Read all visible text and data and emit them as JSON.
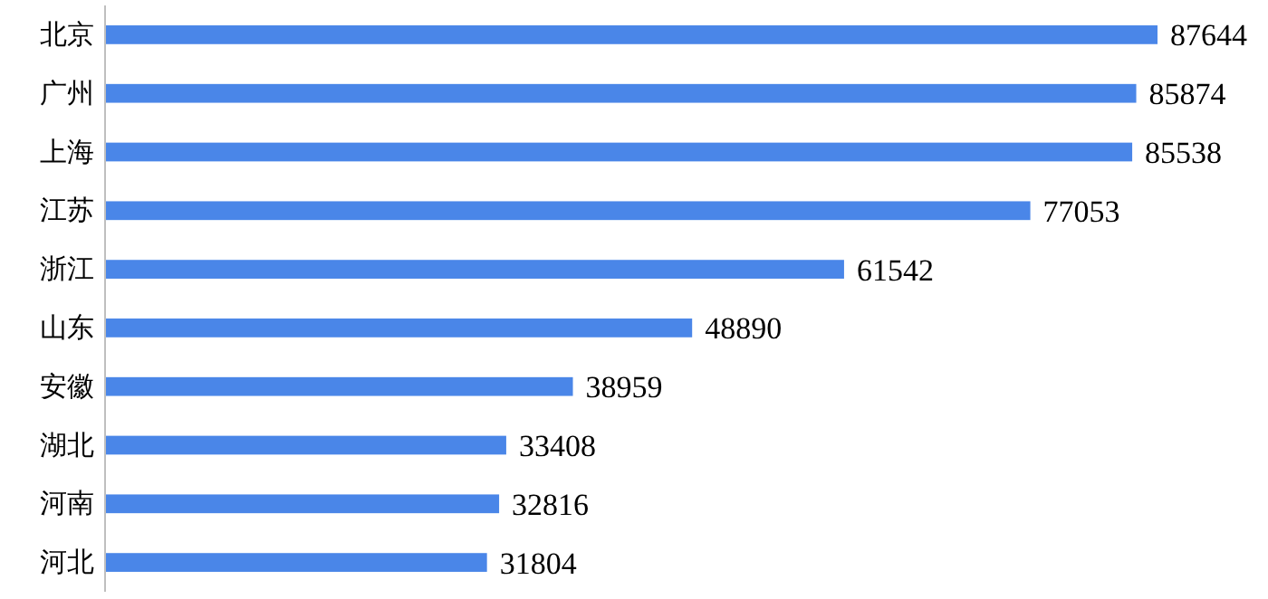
{
  "chart_data": {
    "type": "bar",
    "orientation": "horizontal",
    "categories": [
      "北京",
      "广州",
      "上海",
      "江苏",
      "浙江",
      "山东",
      "安徽",
      "湖北",
      "河南",
      "河北"
    ],
    "values": [
      87644,
      85874,
      85538,
      77053,
      61542,
      48890,
      38959,
      33408,
      32816,
      31804
    ],
    "color": "#4a86e8",
    "data_labels": true
  }
}
